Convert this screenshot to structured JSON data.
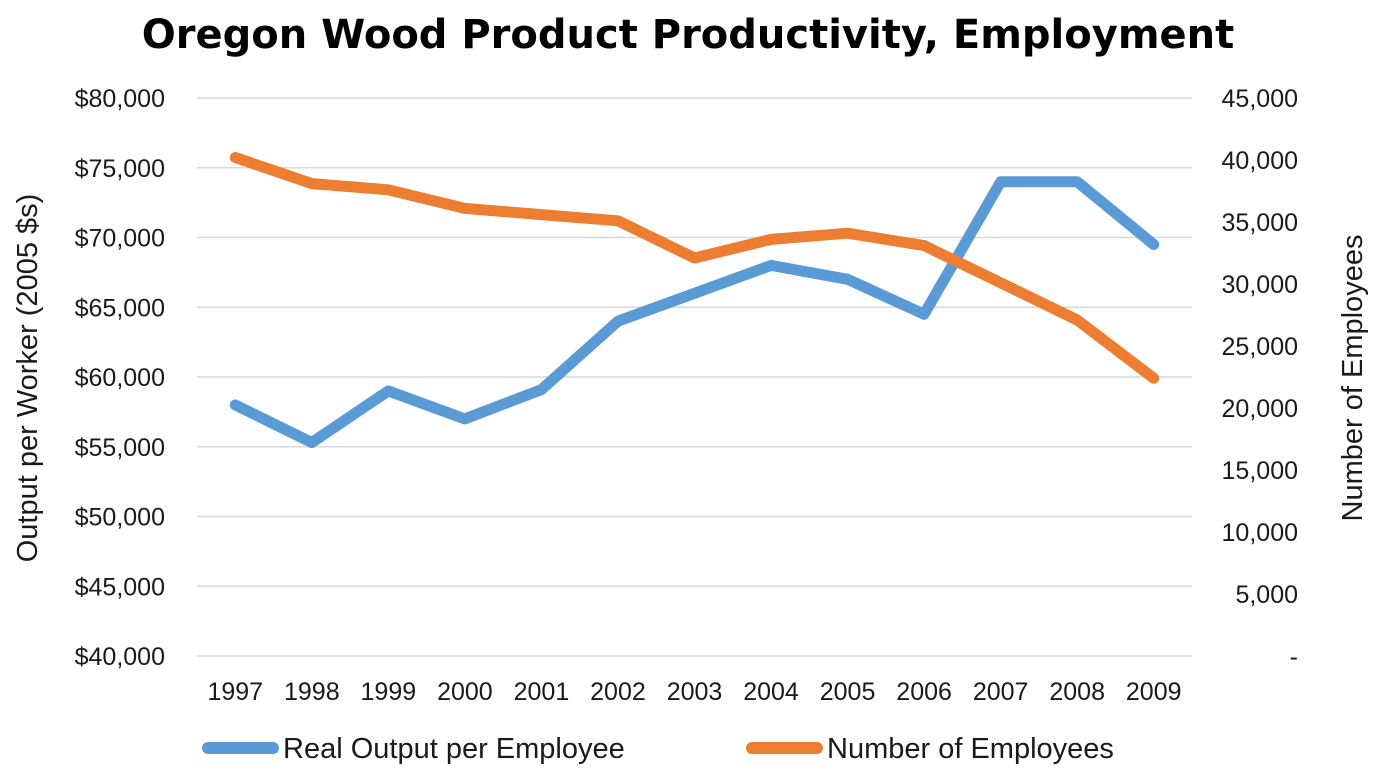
{
  "chart_data": {
    "type": "line",
    "title": "Oregon Wood Product Productivity, Employment",
    "ylabel": "Output per Worker (2005 $s)",
    "y2label": "Number of Employees",
    "categories": [
      "1997",
      "1998",
      "1999",
      "2000",
      "2001",
      "2002",
      "2003",
      "2004",
      "2005",
      "2006",
      "2007",
      "2008",
      "2009"
    ],
    "ylim": [
      40000,
      80000
    ],
    "y2lim": [
      0,
      45000
    ],
    "y_ticks": [
      "$40,000",
      "$45,000",
      "$50,000",
      "$55,000",
      "$60,000",
      "$65,000",
      "$70,000",
      "$75,000",
      "$80,000"
    ],
    "y2_ticks": [
      "-",
      "5,000",
      "10,000",
      "15,000",
      "20,000",
      "25,000",
      "30,000",
      "35,000",
      "40,000",
      "45,000"
    ],
    "grid": true,
    "legend_position": "bottom",
    "series": [
      {
        "name": "Real Output per Employee",
        "axis": "left",
        "color": "#5b9bd5",
        "values": [
          58000,
          55300,
          59000,
          57000,
          59100,
          64000,
          66000,
          68000,
          67000,
          64500,
          74000,
          74000,
          69500
        ]
      },
      {
        "name": "Number of Employees",
        "axis": "right",
        "color": "#ed7d31",
        "values": [
          40200,
          38100,
          37600,
          36100,
          35600,
          35100,
          32100,
          33600,
          34100,
          33100,
          30100,
          27100,
          22400
        ]
      }
    ]
  }
}
